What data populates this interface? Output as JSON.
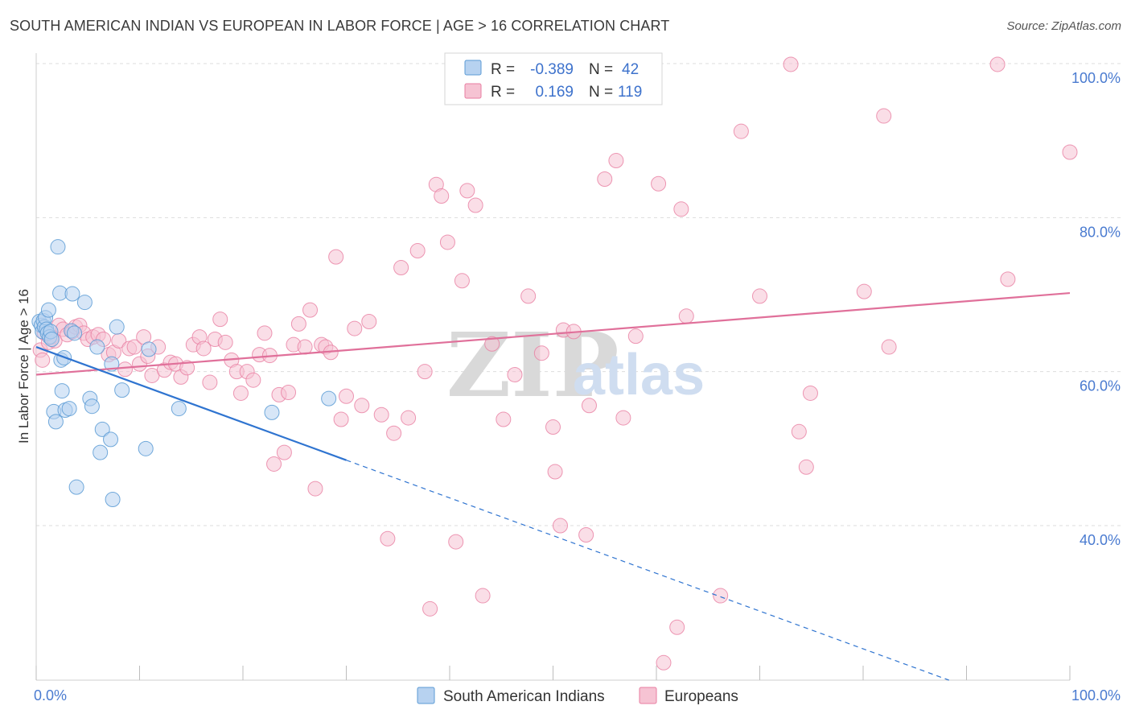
{
  "title": "SOUTH AMERICAN INDIAN VS EUROPEAN IN LABOR FORCE | AGE > 16 CORRELATION CHART",
  "source": "Source: ZipAtlas.com",
  "watermark": {
    "zip": "ZIP",
    "atlas": "atlas"
  },
  "colors": {
    "blue": "#5b9bd5",
    "blue_fill": "#b7d2f0",
    "blue_line": "#2f74d0",
    "pink": "#e87ea1",
    "pink_fill": "#f6c3d3",
    "pink_line": "#e0709a",
    "grid": "#dddddd",
    "tick_text": "#4a7bd0"
  },
  "legend": {
    "rows": [
      {
        "r_label": "R =",
        "r_value": "-0.389",
        "n_label": "N =",
        "n_value": "42"
      },
      {
        "r_label": "R =",
        "r_value": "0.169",
        "n_label": "N =",
        "n_value": "119"
      }
    ]
  },
  "chart_data": {
    "type": "scatter",
    "title": "SOUTH AMERICAN INDIAN VS EUROPEAN IN LABOR FORCE | AGE > 16 CORRELATION CHART",
    "xlabel": "",
    "ylabel": "In Labor Force | Age > 16",
    "xlim": [
      0,
      100
    ],
    "ylim": [
      21,
      102
    ],
    "x_tick_labels": [
      "0.0%",
      "100.0%"
    ],
    "y_ticks": [
      40,
      60,
      80,
      100
    ],
    "y_tick_labels": [
      "40.0%",
      "60.0%",
      "80.0%",
      "100.0%"
    ],
    "grid": true,
    "legend_position": "top-center",
    "series": [
      {
        "name": "South American Indians",
        "color": "#5b9bd5",
        "r": -0.389,
        "n": 42,
        "trend": {
          "x0": 0,
          "y0": 63.2,
          "x1": 30,
          "y1": 48.5,
          "dash_to_x": 100,
          "dash_to_y": 14.2
        },
        "points": [
          [
            0.3,
            66.5
          ],
          [
            0.5,
            66.0
          ],
          [
            0.6,
            65.2
          ],
          [
            0.7,
            66.6
          ],
          [
            0.8,
            65.8
          ],
          [
            0.9,
            67.0
          ],
          [
            1.0,
            65.5
          ],
          [
            1.1,
            65.0
          ],
          [
            1.2,
            68.0
          ],
          [
            1.3,
            64.5
          ],
          [
            1.4,
            65.2
          ],
          [
            1.5,
            64.2
          ],
          [
            1.7,
            54.8
          ],
          [
            1.9,
            53.5
          ],
          [
            2.1,
            76.2
          ],
          [
            2.3,
            70.2
          ],
          [
            2.4,
            61.5
          ],
          [
            2.5,
            57.5
          ],
          [
            2.7,
            61.8
          ],
          [
            2.8,
            55.0
          ],
          [
            3.2,
            55.2
          ],
          [
            3.4,
            65.3
          ],
          [
            3.5,
            70.1
          ],
          [
            3.7,
            65.0
          ],
          [
            3.9,
            45.0
          ],
          [
            4.7,
            69.0
          ],
          [
            5.2,
            56.5
          ],
          [
            5.4,
            55.5
          ],
          [
            5.9,
            63.2
          ],
          [
            6.2,
            49.5
          ],
          [
            6.4,
            52.5
          ],
          [
            7.2,
            51.2
          ],
          [
            7.3,
            61.0
          ],
          [
            7.4,
            43.4
          ],
          [
            7.8,
            65.8
          ],
          [
            8.3,
            57.6
          ],
          [
            10.6,
            50.0
          ],
          [
            10.9,
            62.9
          ],
          [
            13.8,
            55.2
          ],
          [
            22.8,
            54.7
          ],
          [
            28.3,
            56.5
          ]
        ]
      },
      {
        "name": "Europeans",
        "color": "#e87ea1",
        "r": 0.169,
        "n": 119,
        "trend": {
          "x0": 0,
          "y0": 59.6,
          "x1": 100,
          "y1": 70.2
        },
        "points": [
          [
            0.4,
            62.8
          ],
          [
            0.6,
            61.5
          ],
          [
            0.8,
            65.0
          ],
          [
            1.2,
            63.8
          ],
          [
            1.5,
            64.5
          ],
          [
            1.8,
            64.0
          ],
          [
            2.2,
            66.0
          ],
          [
            2.6,
            65.5
          ],
          [
            3.0,
            64.8
          ],
          [
            3.5,
            65.2
          ],
          [
            3.8,
            65.8
          ],
          [
            4.2,
            66.0
          ],
          [
            4.6,
            65.0
          ],
          [
            5.0,
            64.2
          ],
          [
            5.5,
            64.5
          ],
          [
            6.0,
            64.8
          ],
          [
            6.5,
            64.2
          ],
          [
            7.0,
            62.2
          ],
          [
            7.5,
            62.5
          ],
          [
            8.0,
            64.0
          ],
          [
            8.6,
            60.3
          ],
          [
            9.0,
            63.0
          ],
          [
            9.5,
            63.2
          ],
          [
            10.0,
            61.0
          ],
          [
            10.4,
            64.5
          ],
          [
            10.8,
            62.0
          ],
          [
            11.2,
            59.5
          ],
          [
            11.8,
            63.2
          ],
          [
            12.4,
            60.2
          ],
          [
            13.0,
            61.2
          ],
          [
            13.5,
            61.0
          ],
          [
            14.0,
            59.3
          ],
          [
            14.6,
            60.5
          ],
          [
            15.2,
            63.5
          ],
          [
            15.8,
            64.5
          ],
          [
            16.2,
            63.0
          ],
          [
            16.8,
            58.6
          ],
          [
            17.3,
            64.2
          ],
          [
            17.8,
            66.8
          ],
          [
            18.3,
            63.8
          ],
          [
            18.9,
            61.5
          ],
          [
            19.4,
            60.0
          ],
          [
            19.8,
            57.2
          ],
          [
            20.4,
            60.0
          ],
          [
            21.0,
            58.9
          ],
          [
            21.6,
            62.2
          ],
          [
            22.1,
            65.0
          ],
          [
            22.6,
            62.1
          ],
          [
            23.0,
            48.0
          ],
          [
            23.5,
            57.0
          ],
          [
            24.0,
            49.5
          ],
          [
            24.4,
            57.3
          ],
          [
            24.9,
            63.5
          ],
          [
            25.4,
            66.2
          ],
          [
            26.0,
            63.2
          ],
          [
            26.5,
            68.0
          ],
          [
            27.0,
            44.8
          ],
          [
            27.6,
            63.5
          ],
          [
            28.0,
            63.2
          ],
          [
            28.5,
            62.5
          ],
          [
            29.0,
            74.9
          ],
          [
            29.5,
            53.8
          ],
          [
            30.0,
            56.8
          ],
          [
            30.8,
            65.6
          ],
          [
            31.5,
            55.6
          ],
          [
            32.2,
            66.5
          ],
          [
            33.4,
            54.4
          ],
          [
            34.0,
            38.3
          ],
          [
            34.6,
            52.0
          ],
          [
            35.3,
            73.5
          ],
          [
            36.0,
            54.0
          ],
          [
            36.9,
            75.7
          ],
          [
            37.6,
            60.0
          ],
          [
            38.1,
            29.2
          ],
          [
            38.7,
            84.3
          ],
          [
            39.2,
            82.8
          ],
          [
            39.8,
            76.8
          ],
          [
            40.6,
            37.9
          ],
          [
            41.2,
            71.8
          ],
          [
            41.7,
            83.5
          ],
          [
            42.5,
            81.6
          ],
          [
            43.2,
            30.9
          ],
          [
            44.1,
            63.6
          ],
          [
            45.2,
            53.8
          ],
          [
            46.3,
            59.6
          ],
          [
            47.6,
            69.8
          ],
          [
            48.4,
            99.5
          ],
          [
            48.9,
            62.4
          ],
          [
            50.0,
            52.8
          ],
          [
            50.2,
            47.0
          ],
          [
            50.7,
            40.0
          ],
          [
            51.0,
            65.4
          ],
          [
            52.0,
            65.2
          ],
          [
            53.2,
            38.8
          ],
          [
            53.5,
            55.6
          ],
          [
            55.0,
            85.0
          ],
          [
            56.1,
            87.4
          ],
          [
            56.8,
            54.0
          ],
          [
            58.0,
            64.6
          ],
          [
            60.2,
            84.4
          ],
          [
            60.7,
            22.2
          ],
          [
            62.0,
            26.8
          ],
          [
            62.4,
            81.1
          ],
          [
            62.9,
            67.2
          ],
          [
            66.2,
            30.9
          ],
          [
            68.2,
            91.2
          ],
          [
            70.0,
            69.8
          ],
          [
            73.0,
            99.9
          ],
          [
            73.8,
            52.2
          ],
          [
            74.5,
            47.6
          ],
          [
            74.9,
            57.2
          ],
          [
            80.1,
            70.4
          ],
          [
            82.0,
            93.2
          ],
          [
            82.5,
            63.2
          ],
          [
            93.0,
            99.9
          ],
          [
            94.0,
            72.0
          ],
          [
            100.0,
            88.5
          ]
        ]
      }
    ]
  },
  "bottom_legend": [
    {
      "label": "South American Indians"
    },
    {
      "label": "Europeans"
    }
  ]
}
